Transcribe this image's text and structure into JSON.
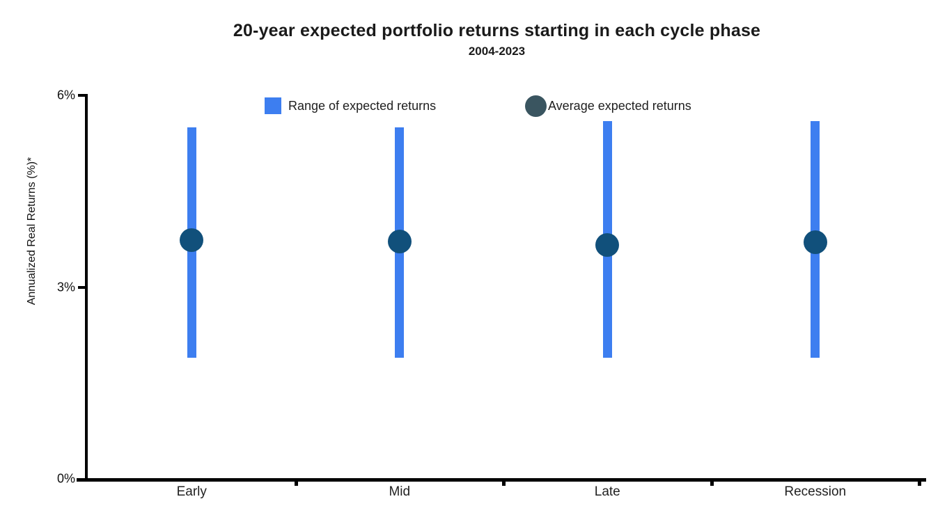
{
  "header": {
    "title": "20-year expected portfolio returns starting in each cycle phase",
    "subtitle": "2004-2023"
  },
  "legend": {
    "range_label": "Range of expected returns",
    "average_label": "Average expected returns"
  },
  "colors": {
    "range_bar": "#3D7EF0",
    "average_dot": "#11507B",
    "legend_circle": "#3A5560",
    "axis": "#000000",
    "text": "#1A1A1A"
  },
  "chart_data": {
    "type": "bar",
    "subtype": "range-with-average-dot",
    "title": "20-year expected portfolio returns starting in each cycle phase",
    "subtitle": "2004-2023",
    "xlabel": "",
    "ylabel": "Annualized Real Returns (%)*",
    "categories": [
      "Early",
      "Mid",
      "Late",
      "Recession"
    ],
    "series": [
      {
        "name": "Range of expected returns",
        "type": "range",
        "low": [
          1.9,
          1.9,
          1.9,
          1.9
        ],
        "high": [
          5.5,
          5.5,
          5.6,
          5.6
        ]
      },
      {
        "name": "Average expected returns",
        "type": "point",
        "values": [
          3.73,
          3.71,
          3.66,
          3.7
        ]
      }
    ],
    "ylim": [
      0,
      6
    ],
    "yticks": [
      {
        "value": 0,
        "label": "0%"
      },
      {
        "value": 3,
        "label": "3%"
      },
      {
        "value": 6,
        "label": "6%"
      }
    ],
    "grid": false,
    "legend_position": "top"
  }
}
